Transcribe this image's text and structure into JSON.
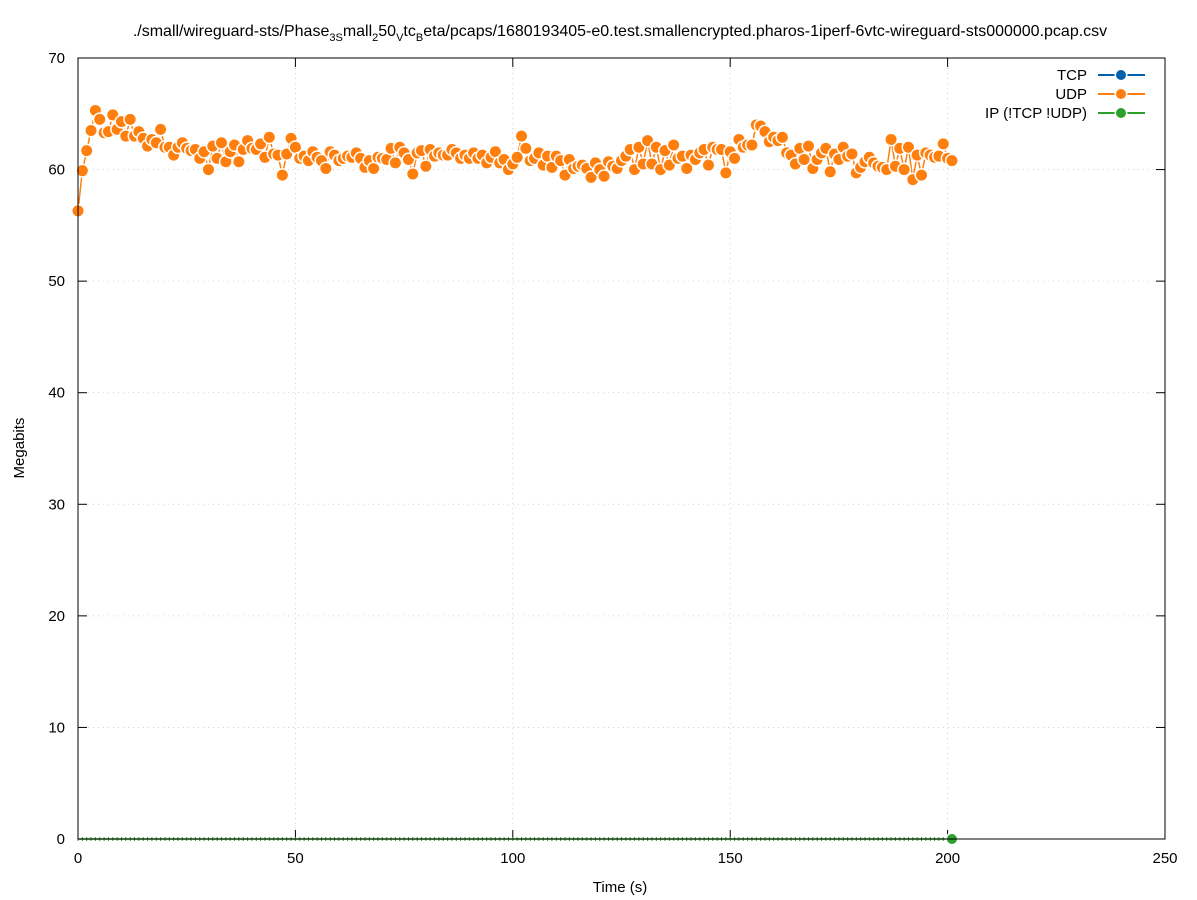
{
  "chart_data": {
    "type": "line",
    "title_parts": {
      "p1": "./small/wireguard-sts/Phase",
      "s1": "3",
      "p2": "S",
      "p3": "mall",
      "s2": "2",
      "p4": "50",
      "s3": "V",
      "p5": "tc",
      "s4": "B",
      "p6": "eta/pcaps/1680193405-e0.test.smallencrypted.pharos-1iperf-6vtc-wireguard-sts000000.pcap.csv"
    },
    "xlabel": "Time (s)",
    "ylabel": "Megabits",
    "xlim": [
      0,
      250
    ],
    "ylim": [
      0,
      70
    ],
    "xticks": [
      0,
      50,
      100,
      150,
      200,
      250
    ],
    "yticks": [
      0,
      10,
      20,
      30,
      40,
      50,
      60,
      70
    ],
    "grid": true,
    "legend_position": "top-right",
    "series": [
      {
        "name": "TCP",
        "color": "#0060ad",
        "x": [],
        "y": []
      },
      {
        "name": "UDP",
        "color": "#ff7f0e",
        "x": [
          0,
          1,
          2,
          3,
          4,
          5,
          6,
          7,
          8,
          9,
          10,
          11,
          12,
          13,
          14,
          15,
          16,
          17,
          18,
          19,
          20,
          21,
          22,
          23,
          24,
          25,
          26,
          27,
          28,
          29,
          30,
          31,
          32,
          33,
          34,
          35,
          36,
          37,
          38,
          39,
          40,
          41,
          42,
          43,
          44,
          45,
          46,
          47,
          48,
          49,
          50,
          51,
          52,
          53,
          54,
          55,
          56,
          57,
          58,
          59,
          60,
          61,
          62,
          63,
          64,
          65,
          66,
          67,
          68,
          69,
          70,
          71,
          72,
          73,
          74,
          75,
          76,
          77,
          78,
          79,
          80,
          81,
          82,
          83,
          84,
          85,
          86,
          87,
          88,
          89,
          90,
          91,
          92,
          93,
          94,
          95,
          96,
          97,
          98,
          99,
          100,
          101,
          102,
          103,
          104,
          105,
          106,
          107,
          108,
          109,
          110,
          111,
          112,
          113,
          114,
          115,
          116,
          117,
          118,
          119,
          120,
          121,
          122,
          123,
          124,
          125,
          126,
          127,
          128,
          129,
          130,
          131,
          132,
          133,
          134,
          135,
          136,
          137,
          138,
          139,
          140,
          141,
          142,
          143,
          144,
          145,
          146,
          147,
          148,
          149,
          150,
          151,
          152,
          153,
          154,
          155,
          156,
          157,
          158,
          159,
          160,
          161,
          162,
          163,
          164,
          165,
          166,
          167,
          168,
          169,
          170,
          171,
          172,
          173,
          174,
          175,
          176,
          177,
          178,
          179,
          180,
          181,
          182,
          183,
          184,
          185,
          186,
          187,
          188,
          189,
          190,
          191,
          192,
          193,
          194,
          195,
          196,
          197,
          198,
          199,
          200,
          201
        ],
        "y": [
          56.3,
          59.9,
          61.7,
          63.5,
          65.3,
          64.5,
          63.3,
          63.4,
          64.9,
          63.6,
          64.3,
          63.0,
          64.5,
          63.0,
          63.4,
          62.8,
          62.1,
          62.7,
          62.4,
          63.6,
          62.0,
          62.0,
          61.3,
          62.0,
          62.4,
          61.9,
          61.7,
          61.8,
          61.0,
          61.6,
          60.0,
          62.1,
          61.0,
          62.4,
          60.7,
          61.6,
          62.2,
          60.7,
          61.8,
          62.6,
          61.9,
          61.8,
          62.3,
          61.1,
          62.9,
          61.4,
          61.3,
          59.5,
          61.4,
          62.8,
          62.0,
          61.0,
          61.2,
          60.8,
          61.6,
          61.1,
          60.8,
          60.1,
          61.6,
          61.3,
          60.8,
          61.0,
          61.2,
          61.1,
          61.5,
          61.0,
          60.2,
          60.8,
          60.1,
          61.1,
          61.0,
          60.9,
          61.9,
          60.6,
          62.0,
          61.5,
          60.9,
          59.6,
          61.5,
          61.7,
          60.3,
          61.8,
          61.2,
          61.5,
          61.3,
          61.3,
          61.8,
          61.5,
          61.0,
          61.3,
          61.0,
          61.5,
          61.0,
          61.3,
          60.6,
          61.1,
          61.6,
          60.6,
          60.9,
          60.0,
          60.5,
          61.1,
          63.0,
          61.9,
          60.8,
          61.0,
          61.5,
          60.4,
          61.2,
          60.2,
          61.2,
          60.8,
          59.5,
          60.9,
          60.1,
          60.3,
          60.4,
          60.1,
          59.3,
          60.6,
          60.0,
          59.4,
          60.7,
          60.3,
          60.1,
          60.8,
          61.2,
          61.8,
          60.0,
          62.0,
          60.5,
          62.6,
          60.5,
          62.0,
          60.0,
          61.7,
          60.4,
          62.2,
          61.0,
          61.2,
          60.1,
          61.3,
          60.9,
          61.5,
          61.8,
          60.4,
          62.0,
          61.8,
          61.8,
          59.7,
          61.6,
          61.0,
          62.7,
          62.0,
          62.2,
          62.2,
          64.0,
          63.9,
          63.4,
          62.5,
          62.9,
          62.6,
          62.9,
          61.5,
          61.3,
          60.5,
          61.9,
          60.9,
          62.1,
          60.1,
          60.9,
          61.5,
          61.9,
          59.8,
          61.4,
          60.9,
          62.0,
          61.2,
          61.4,
          59.7,
          60.2,
          60.7,
          61.1,
          60.6,
          60.3,
          60.2,
          60.0,
          62.7,
          60.3,
          61.9,
          60.0,
          62.0,
          59.1,
          61.3,
          59.5,
          61.5,
          61.3,
          61.1,
          61.2,
          62.3,
          61.0,
          60.8
        ]
      },
      {
        "name": "IP (!TCP  !UDP)",
        "color": "#2ca02c",
        "x": [
          0,
          1,
          2,
          3,
          4,
          5,
          6,
          7,
          8,
          9,
          10,
          11,
          12,
          13,
          14,
          15,
          16,
          17,
          18,
          19,
          20,
          21,
          22,
          23,
          24,
          25,
          26,
          27,
          28,
          29,
          30,
          31,
          32,
          33,
          34,
          35,
          36,
          37,
          38,
          39,
          40,
          41,
          42,
          43,
          44,
          45,
          46,
          47,
          48,
          49,
          50,
          51,
          52,
          53,
          54,
          55,
          56,
          57,
          58,
          59,
          60,
          61,
          62,
          63,
          64,
          65,
          66,
          67,
          68,
          69,
          70,
          71,
          72,
          73,
          74,
          75,
          76,
          77,
          78,
          79,
          80,
          81,
          82,
          83,
          84,
          85,
          86,
          87,
          88,
          89,
          90,
          91,
          92,
          93,
          94,
          95,
          96,
          97,
          98,
          99,
          100,
          101,
          102,
          103,
          104,
          105,
          106,
          107,
          108,
          109,
          110,
          111,
          112,
          113,
          114,
          115,
          116,
          117,
          118,
          119,
          120,
          121,
          122,
          123,
          124,
          125,
          126,
          127,
          128,
          129,
          130,
          131,
          132,
          133,
          134,
          135,
          136,
          137,
          138,
          139,
          140,
          141,
          142,
          143,
          144,
          145,
          146,
          147,
          148,
          149,
          150,
          151,
          152,
          153,
          154,
          155,
          156,
          157,
          158,
          159,
          160,
          161,
          162,
          163,
          164,
          165,
          166,
          167,
          168,
          169,
          170,
          171,
          172,
          173,
          174,
          175,
          176,
          177,
          178,
          179,
          180,
          181,
          182,
          183,
          184,
          185,
          186,
          187,
          188,
          189,
          190,
          191,
          192,
          193,
          194,
          195,
          196,
          197,
          198,
          199,
          200,
          201
        ],
        "y": [
          0,
          0,
          0,
          0,
          0,
          0,
          0,
          0,
          0,
          0,
          0,
          0,
          0,
          0,
          0,
          0,
          0,
          0,
          0,
          0,
          0,
          0,
          0,
          0,
          0,
          0,
          0,
          0,
          0,
          0,
          0,
          0,
          0,
          0,
          0,
          0,
          0,
          0,
          0,
          0,
          0,
          0,
          0,
          0,
          0,
          0,
          0,
          0,
          0,
          0,
          0,
          0,
          0,
          0,
          0,
          0,
          0,
          0,
          0,
          0,
          0,
          0,
          0,
          0,
          0,
          0,
          0,
          0,
          0,
          0,
          0,
          0,
          0,
          0,
          0,
          0,
          0,
          0,
          0,
          0,
          0,
          0,
          0,
          0,
          0,
          0,
          0,
          0,
          0,
          0,
          0,
          0,
          0,
          0,
          0,
          0,
          0,
          0,
          0,
          0,
          0,
          0,
          0,
          0,
          0,
          0,
          0,
          0,
          0,
          0,
          0,
          0,
          0,
          0,
          0,
          0,
          0,
          0,
          0,
          0,
          0,
          0,
          0,
          0,
          0,
          0,
          0,
          0,
          0,
          0,
          0,
          0,
          0,
          0,
          0,
          0,
          0,
          0,
          0,
          0,
          0,
          0,
          0,
          0,
          0,
          0,
          0,
          0,
          0,
          0,
          0,
          0,
          0,
          0,
          0,
          0,
          0,
          0,
          0,
          0,
          0,
          0,
          0,
          0,
          0,
          0,
          0,
          0,
          0,
          0,
          0,
          0,
          0,
          0,
          0,
          0,
          0,
          0,
          0,
          0,
          0,
          0,
          0,
          0,
          0,
          0,
          0,
          0,
          0,
          0,
          0,
          0,
          0,
          0,
          0,
          0,
          0,
          0,
          0,
          0,
          0,
          0
        ]
      }
    ]
  }
}
